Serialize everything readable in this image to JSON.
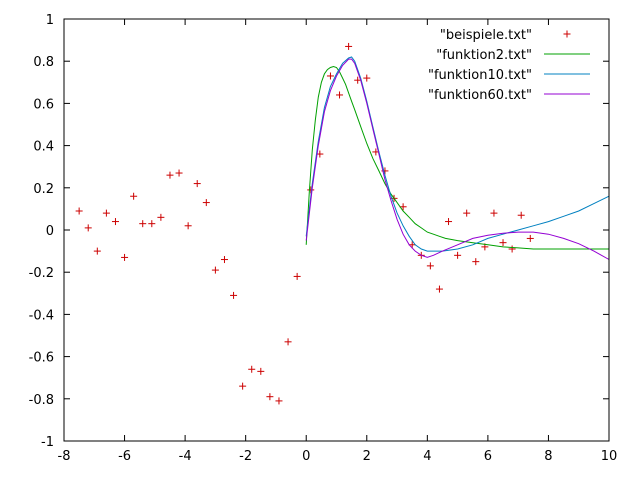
{
  "chart_data": {
    "type": "scatter",
    "title": "",
    "xlabel": "",
    "ylabel": "",
    "xlim": [
      -8,
      10
    ],
    "ylim": [
      -1,
      1
    ],
    "x_ticks": [
      -8,
      -6,
      -4,
      -2,
      0,
      2,
      4,
      6,
      8,
      10
    ],
    "x_tick_labels": [
      "-8",
      "-6",
      "-4",
      "-2",
      "0",
      "2",
      "4",
      "6",
      "8",
      "10"
    ],
    "y_ticks": [
      -1,
      -0.8,
      -0.6,
      -0.4,
      -0.2,
      0,
      0.2,
      0.4,
      0.6,
      0.8,
      1
    ],
    "y_tick_labels": [
      "-1",
      "-0.8",
      "-0.6",
      "-0.4",
      "-0.2",
      "0",
      "0.2",
      "0.4",
      "0.6",
      "0.8",
      "1"
    ],
    "grid": false,
    "legend_position": "top-right",
    "series": [
      {
        "name": "\"beispiele.txt\"",
        "kind": "points",
        "color": "#cc0000",
        "x": [
          -7.5,
          -7.2,
          -6.9,
          -6.6,
          -6.3,
          -6.0,
          -5.7,
          -5.4,
          -5.1,
          -4.8,
          -4.5,
          -4.2,
          -3.9,
          -3.6,
          -3.3,
          -3.0,
          -2.7,
          -2.4,
          -2.1,
          -1.8,
          -1.5,
          -1.2,
          -0.9,
          -0.6,
          -0.3,
          0.15,
          0.45,
          0.8,
          1.1,
          1.4,
          1.7,
          2.0,
          2.3,
          2.6,
          2.9,
          3.2,
          3.5,
          3.8,
          4.1,
          4.4,
          4.7,
          5.0,
          5.3,
          5.6,
          5.9,
          6.2,
          6.5,
          6.8,
          7.1,
          7.4
        ],
        "y": [
          0.09,
          0.01,
          -0.1,
          0.08,
          0.04,
          -0.13,
          0.16,
          0.03,
          0.03,
          0.06,
          0.26,
          0.27,
          0.02,
          0.22,
          0.13,
          -0.19,
          -0.14,
          -0.31,
          -0.74,
          -0.66,
          -0.67,
          -0.79,
          -0.81,
          -0.53,
          -0.22,
          0.19,
          0.36,
          0.73,
          0.64,
          0.87,
          0.71,
          0.72,
          0.37,
          0.28,
          0.15,
          0.11,
          -0.07,
          -0.12,
          -0.17,
          -0.28,
          0.04,
          -0.12,
          0.08,
          -0.15,
          -0.08,
          0.08,
          -0.06,
          -0.09,
          0.07,
          -0.04
        ]
      },
      {
        "name": "\"funktion2.txt\"",
        "kind": "line",
        "color": "#00a000",
        "x": [
          0,
          0.1,
          0.2,
          0.3,
          0.4,
          0.5,
          0.6,
          0.7,
          0.8,
          0.9,
          1.0,
          1.1,
          1.2,
          1.3,
          1.4,
          1.5,
          1.6,
          1.8,
          2.0,
          2.2,
          2.4,
          2.6,
          2.8,
          3.0,
          3.2,
          3.4,
          3.6,
          3.8,
          4.0,
          4.2,
          4.4,
          4.6,
          4.8,
          5.0,
          5.5,
          6.0,
          6.5,
          7.0,
          7.5,
          8.0,
          8.5,
          9.0,
          9.5,
          10.0
        ],
        "y": [
          -0.07,
          0.18,
          0.38,
          0.52,
          0.63,
          0.7,
          0.74,
          0.76,
          0.77,
          0.775,
          0.77,
          0.75,
          0.72,
          0.69,
          0.65,
          0.61,
          0.57,
          0.49,
          0.41,
          0.34,
          0.28,
          0.22,
          0.17,
          0.13,
          0.09,
          0.06,
          0.03,
          0.01,
          -0.01,
          -0.02,
          -0.03,
          -0.04,
          -0.045,
          -0.05,
          -0.06,
          -0.07,
          -0.08,
          -0.085,
          -0.09,
          -0.09,
          -0.09,
          -0.09,
          -0.09,
          -0.09
        ]
      },
      {
        "name": "\"funktion10.txt\"",
        "kind": "line",
        "color": "#0080c0",
        "x": [
          0,
          0.2,
          0.4,
          0.6,
          0.8,
          1.0,
          1.2,
          1.4,
          1.5,
          1.6,
          1.8,
          2.0,
          2.2,
          2.4,
          2.6,
          2.8,
          3.0,
          3.2,
          3.4,
          3.6,
          3.8,
          4.0,
          4.2,
          4.5,
          5.0,
          5.5,
          6.0,
          6.5,
          7.0,
          7.5,
          8.0,
          8.5,
          9.0,
          9.5,
          10.0
        ],
        "y": [
          -0.03,
          0.22,
          0.42,
          0.58,
          0.68,
          0.74,
          0.79,
          0.815,
          0.82,
          0.8,
          0.72,
          0.61,
          0.49,
          0.37,
          0.26,
          0.16,
          0.08,
          0.02,
          -0.03,
          -0.07,
          -0.09,
          -0.1,
          -0.1,
          -0.1,
          -0.09,
          -0.07,
          -0.04,
          -0.02,
          0.0,
          0.02,
          0.04,
          0.065,
          0.09,
          0.125,
          0.16
        ]
      },
      {
        "name": "\"funktion60.txt\"",
        "kind": "line",
        "color": "#9400d3",
        "x": [
          0,
          0.2,
          0.4,
          0.6,
          0.8,
          1.0,
          1.2,
          1.4,
          1.5,
          1.6,
          1.8,
          2.0,
          2.2,
          2.4,
          2.6,
          2.8,
          3.0,
          3.2,
          3.4,
          3.6,
          3.8,
          4.0,
          4.2,
          4.5,
          5.0,
          5.5,
          6.0,
          6.5,
          7.0,
          7.5,
          8.0,
          8.5,
          9.0,
          9.5,
          10.0
        ],
        "y": [
          -0.05,
          0.2,
          0.4,
          0.56,
          0.66,
          0.73,
          0.78,
          0.81,
          0.81,
          0.79,
          0.71,
          0.6,
          0.48,
          0.36,
          0.24,
          0.14,
          0.05,
          -0.02,
          -0.07,
          -0.1,
          -0.12,
          -0.13,
          -0.12,
          -0.1,
          -0.07,
          -0.04,
          -0.025,
          -0.015,
          -0.01,
          -0.01,
          -0.02,
          -0.04,
          -0.065,
          -0.1,
          -0.14
        ]
      }
    ]
  }
}
